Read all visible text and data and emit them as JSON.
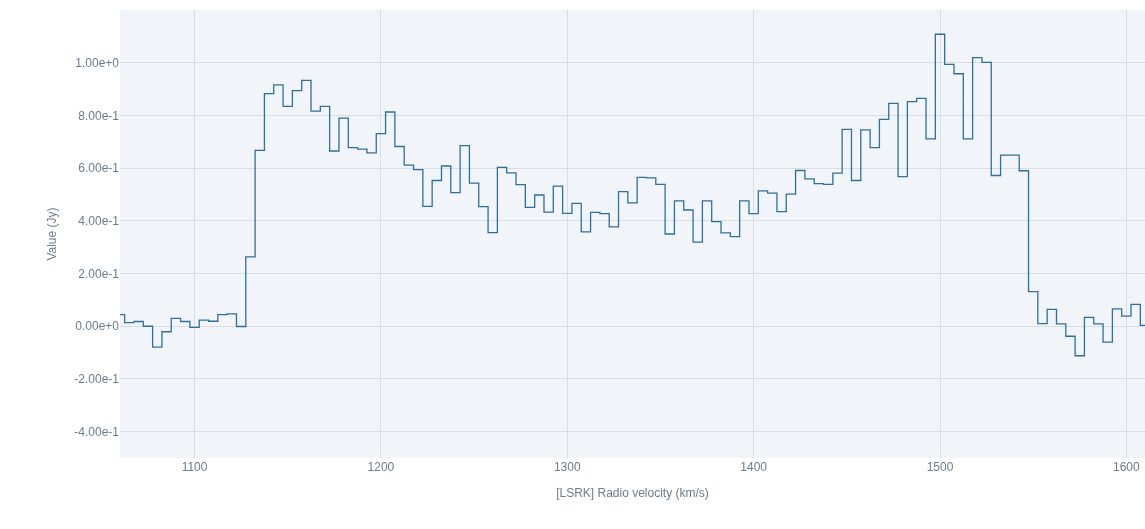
{
  "chart_data": {
    "type": "step",
    "xlabel": "[LSRK] Radio velocity (km/s)",
    "ylabel": "Value (Jy)",
    "x": [
      1060,
      1065,
      1070,
      1075,
      1080,
      1085,
      1090,
      1095,
      1100,
      1105,
      1110,
      1115,
      1120,
      1125,
      1130,
      1135,
      1140,
      1145,
      1150,
      1155,
      1160,
      1165,
      1170,
      1175,
      1180,
      1185,
      1190,
      1195,
      1200,
      1205,
      1210,
      1215,
      1220,
      1225,
      1230,
      1235,
      1240,
      1245,
      1250,
      1255,
      1260,
      1265,
      1270,
      1275,
      1280,
      1285,
      1290,
      1295,
      1300,
      1305,
      1310,
      1315,
      1320,
      1325,
      1330,
      1335,
      1340,
      1345,
      1350,
      1355,
      1360,
      1365,
      1370,
      1375,
      1380,
      1385,
      1390,
      1395,
      1400,
      1405,
      1410,
      1415,
      1420,
      1425,
      1430,
      1435,
      1440,
      1445,
      1450,
      1455,
      1460,
      1465,
      1470,
      1475,
      1480,
      1485,
      1490,
      1495,
      1500,
      1505,
      1510,
      1515,
      1520,
      1525,
      1530,
      1535,
      1540,
      1545,
      1550,
      1555,
      1560,
      1565,
      1570,
      1575,
      1580,
      1585,
      1590,
      1595,
      1600,
      1605,
      1610
    ],
    "series": [
      {
        "color": "#2f6f9f",
        "values": [
          0.044,
          0.014,
          0.018,
          0.0,
          -0.079,
          -0.021,
          0.03,
          0.018,
          -0.004,
          0.023,
          0.019,
          0.044,
          0.047,
          -0.001,
          0.263,
          0.667,
          0.883,
          0.916,
          0.834,
          0.894,
          0.933,
          0.816,
          0.834,
          0.665,
          0.79,
          0.678,
          0.672,
          0.658,
          0.731,
          0.813,
          0.682,
          0.611,
          0.594,
          0.455,
          0.553,
          0.608,
          0.507,
          0.685,
          0.543,
          0.454,
          0.355,
          0.603,
          0.582,
          0.537,
          0.451,
          0.498,
          0.433,
          0.532,
          0.428,
          0.466,
          0.358,
          0.432,
          0.427,
          0.377,
          0.511,
          0.468,
          0.565,
          0.563,
          0.538,
          0.35,
          0.476,
          0.441,
          0.319,
          0.476,
          0.397,
          0.354,
          0.34,
          0.476,
          0.427,
          0.514,
          0.505,
          0.435,
          0.501,
          0.591,
          0.559,
          0.541,
          0.538,
          0.581,
          0.747,
          0.553,
          0.745,
          0.678,
          0.785,
          0.846,
          0.568,
          0.852,
          0.865,
          0.711,
          1.108,
          0.994,
          0.958,
          0.711,
          1.019,
          1.001,
          0.572,
          0.649,
          0.649,
          0.59,
          0.131,
          0.01,
          0.064,
          0.009,
          -0.038,
          -0.112,
          0.034,
          0.009,
          -0.06,
          0.066,
          0.038,
          0.083,
          0.003
        ]
      }
    ],
    "xlim": [
      1060,
      1610
    ],
    "xticks": [
      1100,
      1200,
      1300,
      1400,
      1500,
      1600
    ],
    "ylim": [
      -0.5,
      1.2
    ],
    "yticks": [
      {
        "value": -0.4,
        "label": "-4.00e-1"
      },
      {
        "value": -0.2,
        "label": "-2.00e-1"
      },
      {
        "value": 0,
        "label": "0.00e+0"
      },
      {
        "value": 0.2,
        "label": "2.00e-1"
      },
      {
        "value": 0.4,
        "label": "4.00e-1"
      },
      {
        "value": 0.6,
        "label": "6.00e-1"
      },
      {
        "value": 0.8,
        "label": "8.00e-1"
      },
      {
        "value": 1.0,
        "label": "1.00e+0"
      }
    ],
    "grid": true
  }
}
